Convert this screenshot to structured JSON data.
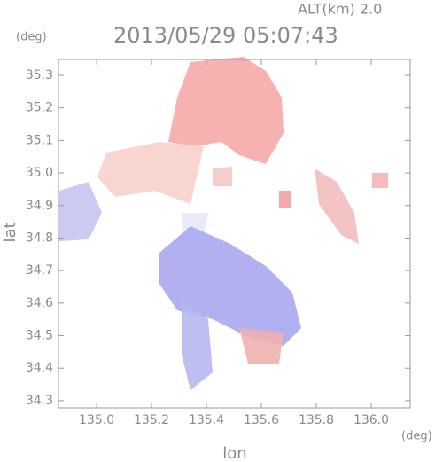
{
  "chart_data": {
    "type": "map",
    "title": "2013/05/29 05:07:43",
    "subtitle": "ALT(km) 2.0",
    "x_label": "lon",
    "y_label": "lat",
    "x_unit": "(deg)",
    "y_unit": "(deg)",
    "xlim": [
      134.861,
      136.142
    ],
    "ylim": [
      34.278,
      35.349
    ],
    "xticks": [
      {
        "value": 135.0,
        "label": "135.0"
      },
      135.2,
      135.4,
      135.6,
      135.8,
      {
        "value": 136.0,
        "label": "136.0"
      }
    ],
    "yticks": [
      34.3,
      34.4,
      34.5,
      34.6,
      34.7,
      34.8,
      34.9,
      {
        "value": 35.0,
        "label": "35.0"
      },
      35.1,
      35.2,
      35.3
    ]
  }
}
